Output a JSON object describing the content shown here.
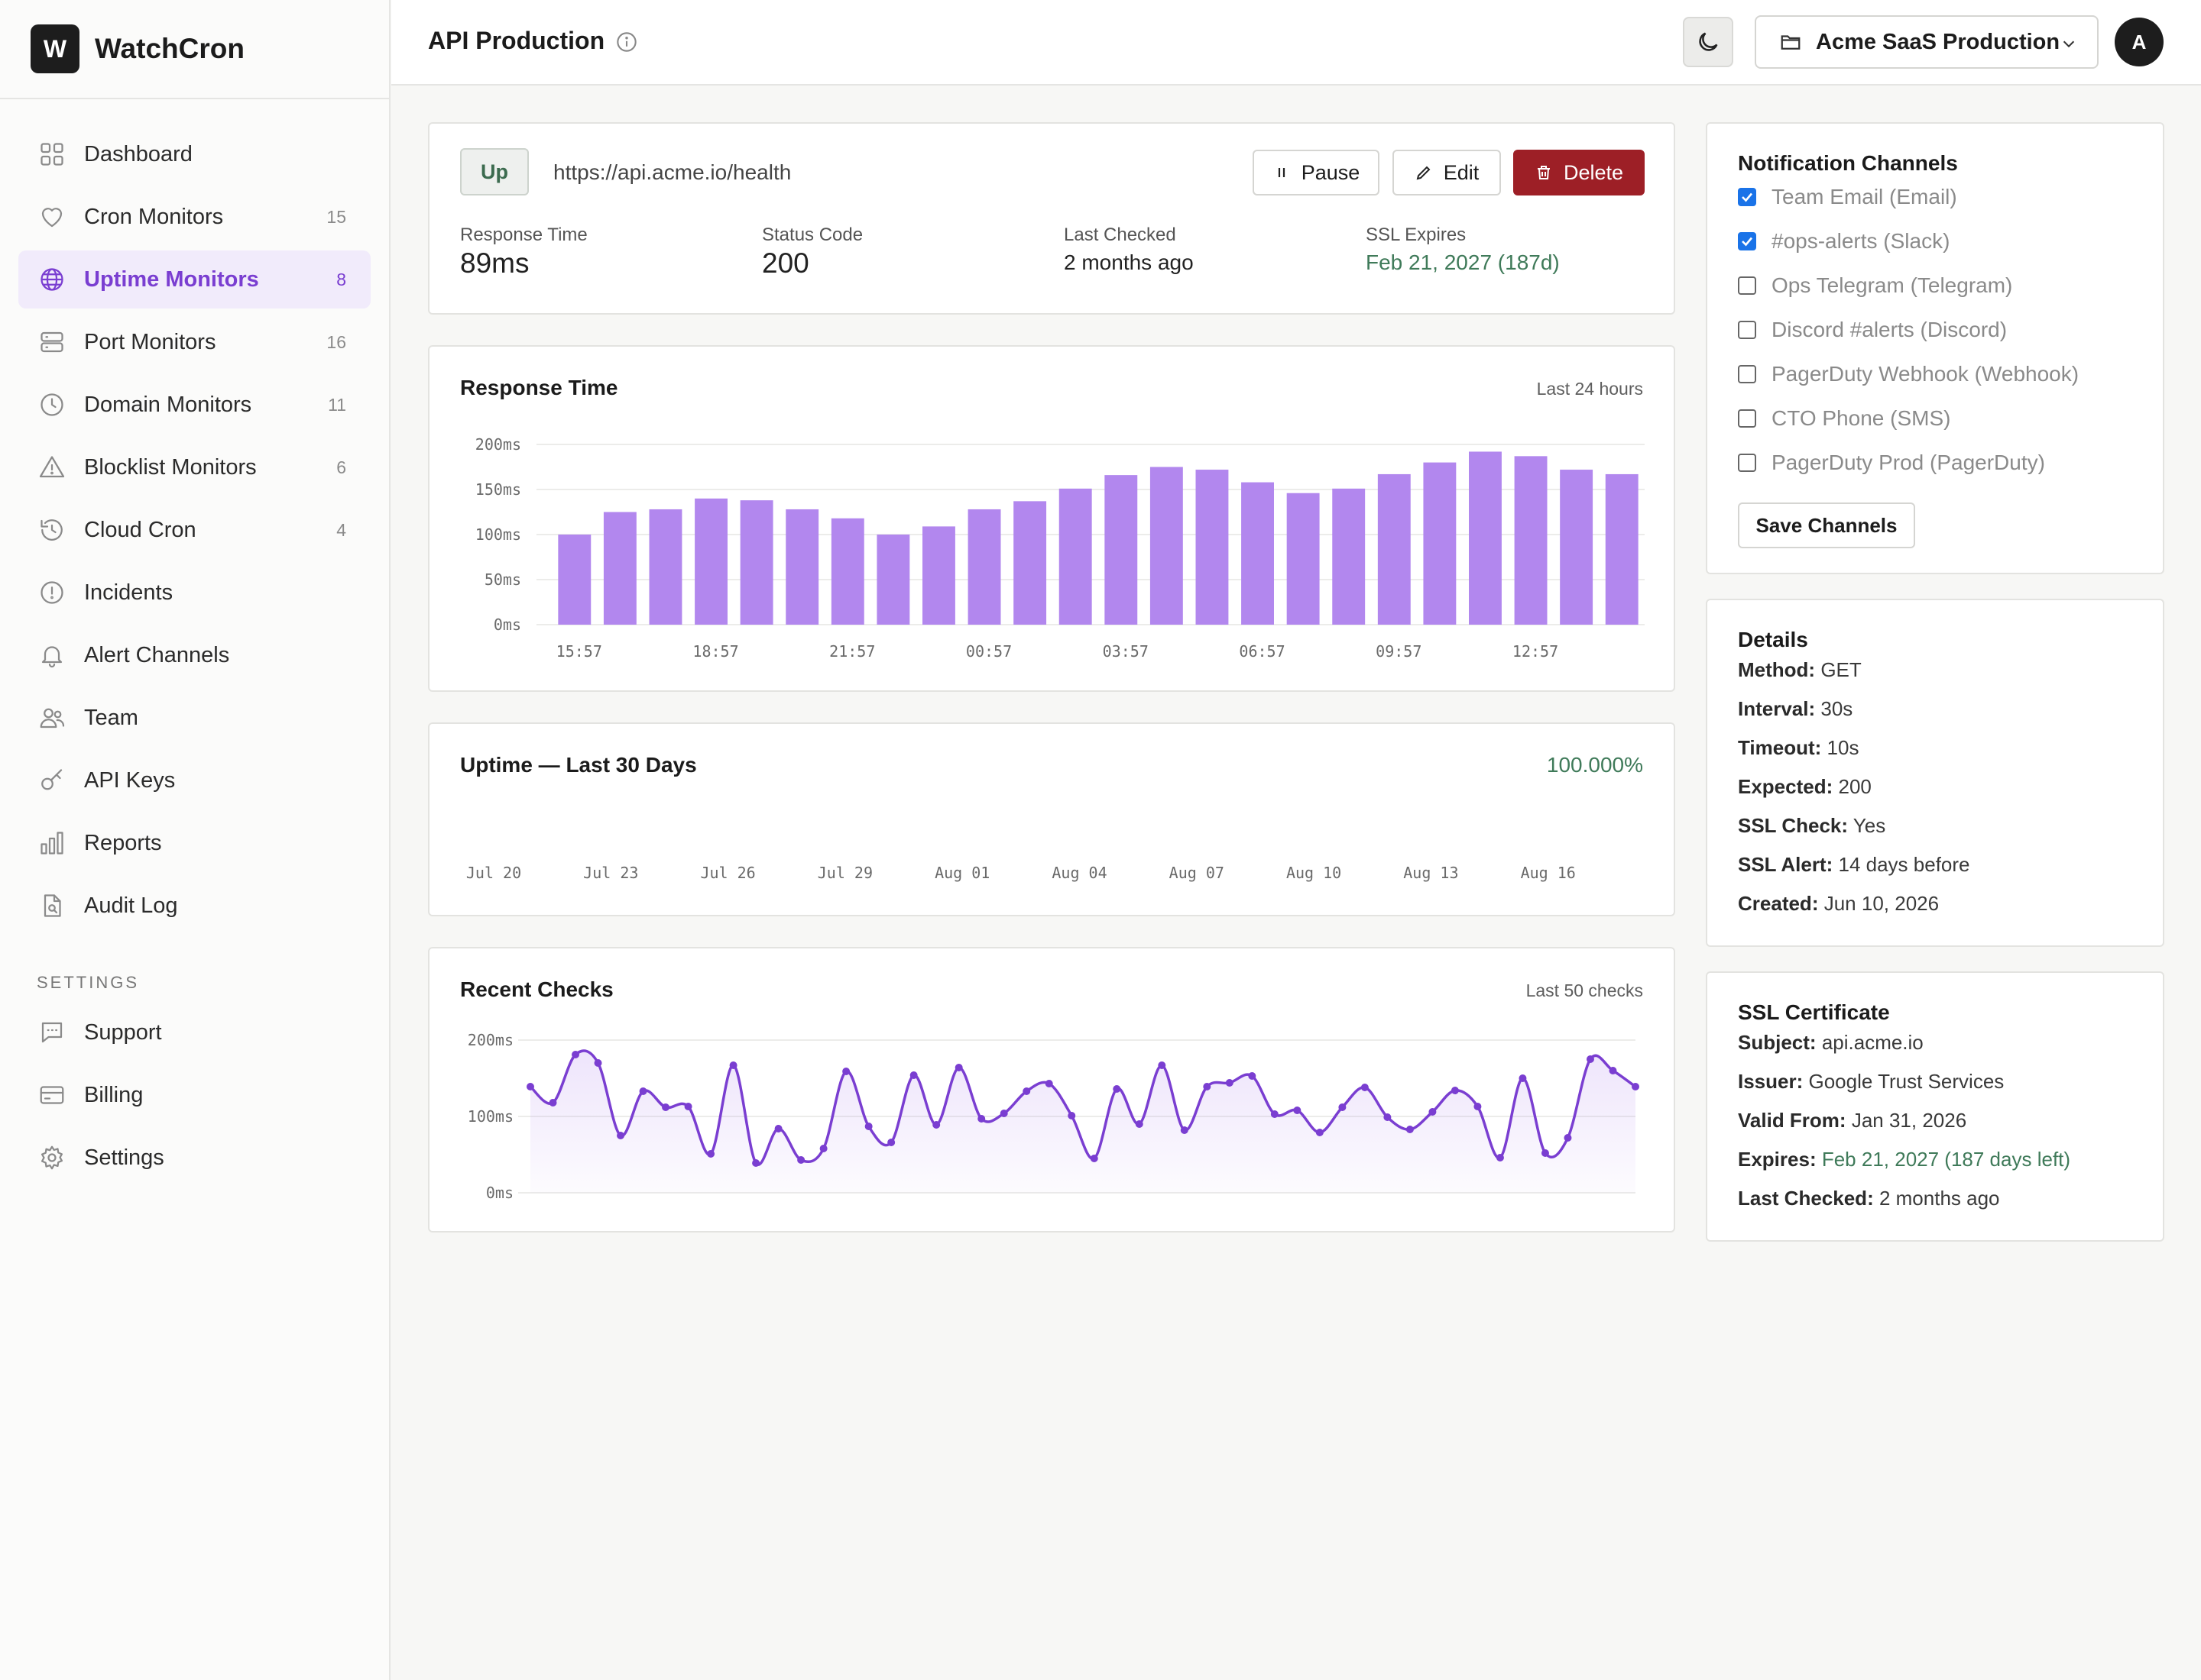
{
  "brand": {
    "logo_letter": "W",
    "name": "WatchCron"
  },
  "sidebar": {
    "items": [
      {
        "label": "Dashboard",
        "icon": "dashboard-icon",
        "count": ""
      },
      {
        "label": "Cron Monitors",
        "icon": "heart-icon",
        "count": "15"
      },
      {
        "label": "Uptime Monitors",
        "icon": "globe-icon",
        "count": "8",
        "active": true
      },
      {
        "label": "Port Monitors",
        "icon": "server-icon",
        "count": "16"
      },
      {
        "label": "Domain Monitors",
        "icon": "clock-icon",
        "count": "11"
      },
      {
        "label": "Blocklist Monitors",
        "icon": "warning-icon",
        "count": "6"
      },
      {
        "label": "Cloud Cron",
        "icon": "history-icon",
        "count": "4"
      },
      {
        "label": "Incidents",
        "icon": "alert-circle-icon",
        "count": ""
      },
      {
        "label": "Alert Channels",
        "icon": "bell-icon",
        "count": ""
      },
      {
        "label": "Team",
        "icon": "team-icon",
        "count": ""
      },
      {
        "label": "API Keys",
        "icon": "key-icon",
        "count": ""
      },
      {
        "label": "Reports",
        "icon": "bar-chart-icon",
        "count": ""
      },
      {
        "label": "Audit Log",
        "icon": "file-search-icon",
        "count": ""
      }
    ],
    "settings_heading": "SETTINGS",
    "settings_items": [
      {
        "label": "Support",
        "icon": "chat-icon"
      },
      {
        "label": "Billing",
        "icon": "credit-card-icon"
      },
      {
        "label": "Settings",
        "icon": "gear-icon"
      }
    ]
  },
  "header": {
    "title": "API Production",
    "workspace": "Acme SaaS Production",
    "avatar_letter": "A"
  },
  "summary": {
    "status": "Up",
    "url": "https://api.acme.io/health",
    "pause_label": "Pause",
    "edit_label": "Edit",
    "delete_label": "Delete",
    "stats": [
      {
        "label": "Response Time",
        "value": "89ms"
      },
      {
        "label": "Status Code",
        "value": "200"
      },
      {
        "label": "Last Checked",
        "value": "2 months ago"
      },
      {
        "label": "SSL Expires",
        "value": "Feb 21, 2027 (187d)"
      }
    ]
  },
  "response_chart": {
    "title": "Response Time",
    "subtitle": "Last 24 hours",
    "chart_data": {
      "type": "bar",
      "y_ticks": [
        "200ms",
        "150ms",
        "100ms",
        "50ms",
        "0ms"
      ],
      "ylim": [
        0,
        200
      ],
      "x_tick_labels": [
        "15:57",
        "18:57",
        "21:57",
        "00:57",
        "03:57",
        "06:57",
        "09:57",
        "12:57"
      ],
      "values": [
        100,
        125,
        128,
        140,
        138,
        128,
        118,
        100,
        109,
        128,
        137,
        151,
        166,
        175,
        172,
        158,
        146,
        151,
        167,
        180,
        192,
        187,
        172,
        167
      ],
      "color": "#b287ee"
    }
  },
  "uptime_chart": {
    "title": "Uptime — Last 30 Days",
    "value": "100.000%",
    "x_tick_labels": [
      "Jul 20",
      "Jul 23",
      "Jul 26",
      "Jul 29",
      "Aug 01",
      "Aug 04",
      "Aug 07",
      "Aug 10",
      "Aug 13",
      "Aug 16"
    ]
  },
  "recent_checks": {
    "title": "Recent Checks",
    "subtitle": "Last 50 checks",
    "chart_data": {
      "type": "line",
      "y_ticks": [
        "200ms",
        "100ms",
        "0ms"
      ],
      "ylim": [
        0,
        200
      ],
      "values": [
        139,
        118,
        181,
        170,
        75,
        133,
        112,
        113,
        51,
        167,
        39,
        84,
        43,
        58,
        159,
        87,
        66,
        154,
        89,
        164,
        97,
        104,
        133,
        143,
        101,
        45,
        136,
        90,
        167,
        82,
        139,
        144,
        153,
        103,
        108,
        79,
        112,
        138,
        99,
        83,
        106,
        134,
        113,
        46,
        150,
        52,
        72,
        175,
        160,
        139
      ],
      "color": "#7a3ed1"
    }
  },
  "notifications": {
    "title": "Notification Channels",
    "channels": [
      {
        "label": "Team Email (Email)",
        "checked": true
      },
      {
        "label": "#ops-alerts (Slack)",
        "checked": true
      },
      {
        "label": "Ops Telegram (Telegram)",
        "checked": false
      },
      {
        "label": "Discord #alerts (Discord)",
        "checked": false
      },
      {
        "label": "PagerDuty Webhook (Webhook)",
        "checked": false
      },
      {
        "label": "CTO Phone (SMS)",
        "checked": false
      },
      {
        "label": "PagerDuty Prod (PagerDuty)",
        "checked": false
      }
    ],
    "save_label": "Save Channels"
  },
  "details": {
    "title": "Details",
    "rows": [
      {
        "key": "Method:",
        "value": "GET"
      },
      {
        "key": "Interval:",
        "value": "30s"
      },
      {
        "key": "Timeout:",
        "value": "10s"
      },
      {
        "key": "Expected:",
        "value": "200"
      },
      {
        "key": "SSL Check:",
        "value": "Yes"
      },
      {
        "key": "SSL Alert:",
        "value": "14 days before"
      },
      {
        "key": "Created:",
        "value": "Jun 10, 2026"
      }
    ]
  },
  "ssl": {
    "title": "SSL Certificate",
    "rows": [
      {
        "key": "Subject:",
        "value": "api.acme.io"
      },
      {
        "key": "Issuer:",
        "value": "Google Trust Services"
      },
      {
        "key": "Valid From:",
        "value": "Jan 31, 2026"
      },
      {
        "key": "Expires:",
        "value": "Feb 21, 2027 (187 days left)",
        "highlight": true
      },
      {
        "key": "Last Checked:",
        "value": "2 months ago"
      }
    ]
  }
}
